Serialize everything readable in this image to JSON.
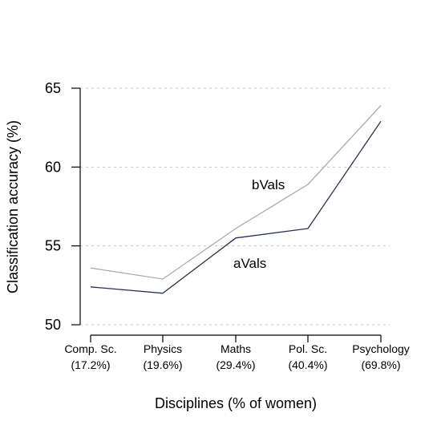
{
  "chart_data": {
    "type": "line",
    "categories": [
      "Comp. Sc.",
      "Physics",
      "Maths",
      "Pol. Sc.",
      "Psychology"
    ],
    "category_sublabels": [
      "(17.2%)",
      "(19.6%)",
      "(29.4%)",
      "(40.4%)",
      "(69.8%)"
    ],
    "series": [
      {
        "name": "bVals",
        "values": [
          53.6,
          52.9,
          56.1,
          58.9,
          63.9
        ],
        "color": "#aaaaaa"
      },
      {
        "name": "aVals",
        "values": [
          52.4,
          52.0,
          55.5,
          56.1,
          62.9
        ],
        "color": "#2b3150"
      }
    ],
    "xlabel": "Disciplines (% of women)",
    "ylabel": "Classification accuracy (%)",
    "ylim": [
      50,
      65
    ],
    "yticks": [
      50,
      55,
      60,
      65
    ],
    "grid": true,
    "grid_style": "dashed horizontal"
  }
}
